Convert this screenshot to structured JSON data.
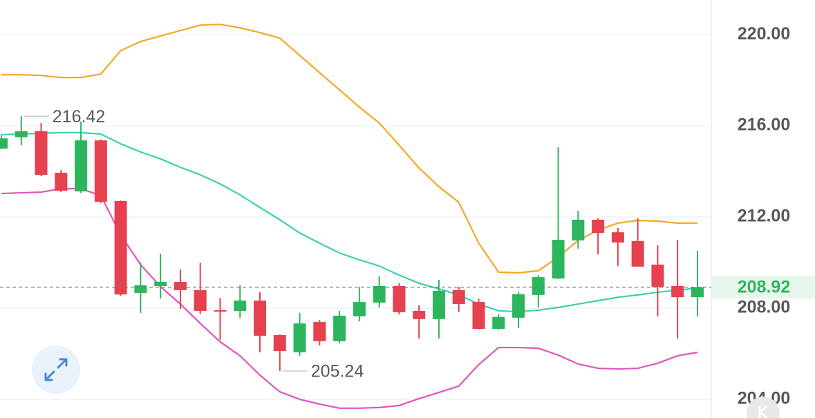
{
  "chart_data": {
    "type": "candlestick",
    "ylim": [
      203.18,
      221.52
    ],
    "yticks": [
      {
        "value": 220,
        "label": "220.00"
      },
      {
        "value": 216,
        "label": "216.00"
      },
      {
        "value": 212,
        "label": "212.00"
      },
      {
        "value": 208,
        "label": "208.00"
      },
      {
        "value": 204,
        "label": "204.00"
      }
    ],
    "grid": true,
    "up_color": "#2db55d",
    "down_color": "#e5414f",
    "open": [
      215.0,
      215.5,
      215.76,
      213.94,
      213.12,
      215.36,
      212.7,
      208.67,
      208.97,
      209.15,
      208.79,
      207.91,
      207.88,
      208.33,
      206.82,
      206.06,
      207.39,
      206.55,
      207.64,
      208.24,
      208.97,
      207.88,
      207.52,
      208.79,
      208.27,
      207.09,
      207.58,
      208.58,
      209.3,
      210.97,
      211.88,
      211.33,
      210.94,
      209.91,
      208.97,
      208.48
    ],
    "close": [
      215.45,
      215.76,
      213.85,
      213.15,
      215.36,
      212.67,
      208.6,
      209.0,
      209.15,
      208.79,
      207.88,
      207.85,
      208.33,
      206.79,
      206.12,
      207.33,
      206.55,
      207.67,
      208.27,
      208.97,
      207.82,
      207.52,
      208.76,
      208.18,
      207.09,
      207.61,
      208.61,
      209.36,
      211.0,
      211.88,
      211.3,
      210.88,
      209.82,
      208.94,
      208.48,
      208.92
    ],
    "high": [
      215.6,
      216.42,
      216.12,
      214.06,
      216.18,
      215.4,
      212.72,
      210.0,
      210.39,
      209.7,
      210.0,
      208.45,
      209.0,
      208.7,
      206.85,
      207.79,
      207.48,
      207.88,
      208.94,
      209.39,
      209.09,
      208.12,
      209.24,
      208.94,
      208.42,
      207.73,
      208.7,
      209.45,
      215.06,
      212.27,
      211.94,
      211.52,
      211.94,
      210.76,
      211.0,
      210.52
    ],
    "low": [
      214.98,
      215.15,
      213.79,
      213.09,
      213.06,
      212.6,
      208.55,
      207.79,
      208.42,
      207.97,
      207.73,
      206.61,
      207.58,
      206.06,
      205.24,
      205.91,
      206.36,
      206.45,
      207.42,
      208.03,
      207.73,
      206.67,
      206.67,
      207.82,
      207.06,
      207.06,
      207.12,
      208.03,
      209.27,
      210.61,
      210.36,
      209.85,
      209.85,
      207.64,
      206.67,
      207.64
    ],
    "series": [
      {
        "color": "#f5a623",
        "values": [
          218.24,
          218.24,
          218.21,
          218.12,
          218.12,
          218.27,
          219.3,
          219.7,
          219.94,
          220.18,
          220.42,
          220.45,
          220.3,
          220.09,
          219.85,
          219.09,
          218.33,
          217.58,
          216.82,
          216.12,
          215.15,
          214.15,
          213.33,
          212.64,
          210.85,
          209.58,
          209.55,
          209.64,
          210.24,
          210.97,
          211.42,
          211.73,
          211.85,
          211.82,
          211.73,
          211.73
        ]
      },
      {
        "color": "#3ad1ad",
        "values": [
          215.61,
          215.64,
          215.67,
          215.7,
          215.7,
          215.64,
          215.21,
          214.85,
          214.55,
          214.18,
          213.85,
          213.45,
          212.97,
          212.42,
          211.88,
          211.3,
          210.85,
          210.42,
          210.12,
          209.85,
          209.45,
          209.09,
          208.85,
          208.58,
          208.18,
          207.88,
          207.85,
          207.91,
          208.03,
          208.18,
          208.33,
          208.48,
          208.58,
          208.7,
          208.79,
          208.88
        ]
      },
      {
        "color": "#e052c4",
        "values": [
          213.03,
          213.06,
          213.09,
          213.24,
          213.24,
          212.94,
          211.21,
          209.91,
          208.94,
          208.18,
          207.33,
          206.52,
          205.91,
          205.06,
          204.33,
          204.0,
          203.79,
          203.61,
          203.61,
          203.64,
          203.73,
          204.03,
          204.3,
          204.58,
          205.52,
          206.27,
          206.27,
          206.24,
          205.94,
          205.55,
          205.36,
          205.33,
          205.36,
          205.58,
          205.91,
          206.06
        ]
      }
    ],
    "high_label": 216.42,
    "low_label": 205.24,
    "last_price": 208.92
  }
}
